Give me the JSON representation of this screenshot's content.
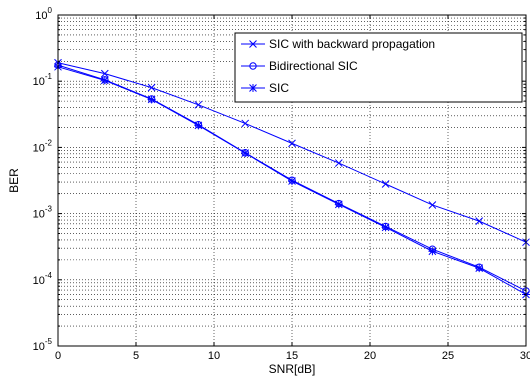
{
  "chart_data": {
    "type": "line",
    "title": "",
    "xlabel": "SNR[dB]",
    "ylabel": "BER",
    "xlim": [
      0,
      30
    ],
    "ylim": [
      1e-05,
      1
    ],
    "yscale": "log",
    "grid": true,
    "legend_position": "top-right",
    "x_ticks": [
      0,
      5,
      10,
      15,
      20,
      25,
      30
    ],
    "y_ticks": [
      {
        "value": 1,
        "exp": "0"
      },
      {
        "value": 0.1,
        "exp": "-1"
      },
      {
        "value": 0.01,
        "exp": "-2"
      },
      {
        "value": 0.001,
        "exp": "-3"
      },
      {
        "value": 0.0001,
        "exp": "-4"
      },
      {
        "value": 1e-05,
        "exp": "-5"
      }
    ],
    "y_tick_base": "10",
    "x": [
      0,
      3,
      6,
      9,
      12,
      15,
      18,
      21,
      24,
      27,
      30
    ],
    "series": [
      {
        "name": "SIC with backward propagation",
        "marker": "x",
        "color": "#0000ff",
        "values": [
          0.19,
          0.13,
          0.08,
          0.044,
          0.023,
          0.0115,
          0.0058,
          0.0028,
          0.00135,
          0.00077,
          0.00037
        ]
      },
      {
        "name": "Bidirectional SIC",
        "marker": "o",
        "color": "#0000ff",
        "values": [
          0.175,
          0.105,
          0.054,
          0.022,
          0.0083,
          0.0032,
          0.00142,
          0.00064,
          0.00029,
          0.000155,
          6.8e-05
        ]
      },
      {
        "name": "SIC",
        "marker": "*",
        "color": "#0000ff",
        "values": [
          0.165,
          0.103,
          0.053,
          0.0215,
          0.0082,
          0.0031,
          0.00138,
          0.00062,
          0.00027,
          0.00015,
          6e-05
        ]
      }
    ]
  }
}
